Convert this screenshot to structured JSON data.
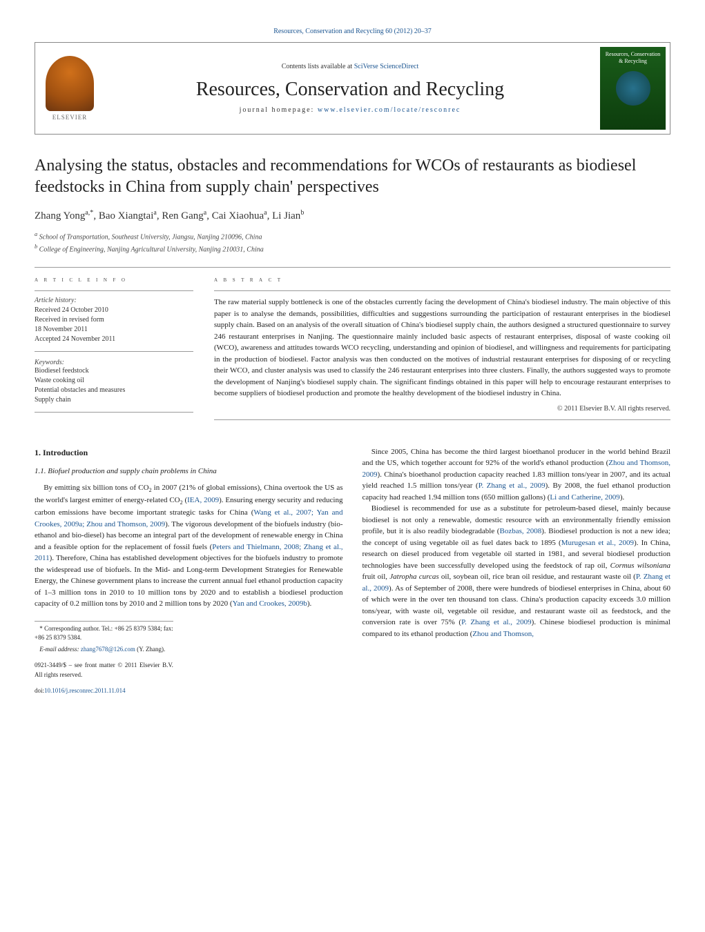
{
  "header": {
    "journal_ref": "Resources, Conservation and Recycling 60 (2012) 20–37",
    "contents_prefix": "Contents lists available at ",
    "contents_link": "SciVerse ScienceDirect",
    "journal_name": "Resources, Conservation and Recycling",
    "homepage_prefix": "journal homepage: ",
    "homepage_link": "www.elsevier.com/locate/resconrec",
    "elsevier_label": "ELSEVIER",
    "cover_text": "Resources, Conservation & Recycling"
  },
  "title": "Analysing the status, obstacles and recommendations for WCOs of restaurants as biodiesel feedstocks in China from supply chain' perspectives",
  "authors_html": "Zhang Yong<sup>a,*</sup>, Bao Xiangtai<sup>a</sup>, Ren Gang<sup>a</sup>, Cai Xiaohua<sup>a</sup>, Li Jian<sup>b</sup>",
  "affiliations": {
    "a": "School of Transportation, Southeast University, Jiangsu, Nanjing 210096, China",
    "b": "College of Engineering, Nanjing Agricultural University, Nanjing 210031, China"
  },
  "info": {
    "section_label": "a r t i c l e   i n f o",
    "history_label": "Article history:",
    "history": [
      "Received 24 October 2010",
      "Received in revised form",
      "18 November 2011",
      "Accepted 24 November 2011"
    ],
    "keywords_label": "Keywords:",
    "keywords": [
      "Biodiesel feedstock",
      "Waste cooking oil",
      "Potential obstacles and measures",
      "Supply chain"
    ]
  },
  "abstract": {
    "section_label": "a b s t r a c t",
    "text": "The raw material supply bottleneck is one of the obstacles currently facing the development of China's biodiesel industry. The main objective of this paper is to analyse the demands, possibilities, difficulties and suggestions surrounding the participation of restaurant enterprises in the biodiesel supply chain. Based on an analysis of the overall situation of China's biodiesel supply chain, the authors designed a structured questionnaire to survey 246 restaurant enterprises in Nanjing. The questionnaire mainly included basic aspects of restaurant enterprises, disposal of waste cooking oil (WCO), awareness and attitudes towards WCO recycling, understanding and opinion of biodiesel, and willingness and requirements for participating in the production of biodiesel. Factor analysis was then conducted on the motives of industrial restaurant enterprises for disposing of or recycling their WCO, and cluster analysis was used to classify the 246 restaurant enterprises into three clusters. Finally, the authors suggested ways to promote the development of Nanjing's biodiesel supply chain. The significant findings obtained in this paper will help to encourage restaurant enterprises to become suppliers of biodiesel production and promote the healthy development of the biodiesel industry in China.",
    "copyright": "© 2011 Elsevier B.V. All rights reserved."
  },
  "body": {
    "s1_heading": "1.  Introduction",
    "s11_heading": "1.1.  Biofuel production and supply chain problems in China",
    "p1_a": "By emitting six billion tons of CO",
    "p1_b": " in 2007 (21% of global emissions), China overtook the US as the world's largest emitter of energy-related CO",
    "p1_c": " (",
    "p1_link1": "IEA, 2009",
    "p1_d": "). Ensuring energy security and reducing carbon emissions have become important strategic tasks for China (",
    "p1_link2": "Wang et al., 2007; Yan and Crookes, 2009a; Zhou and Thomson, 2009",
    "p1_e": "). The vigorous development of the biofuels industry (bio-ethanol and bio-diesel) has become an integral part of the development of renewable energy in China and a feasible option for the replacement of fossil fuels (",
    "p1_link3": "Peters and Thielmann, 2008; Zhang et al., 2011",
    "p1_f": "). Therefore, China has established development objectives for the biofuels industry to promote the widespread use of biofuels. In the Mid- and Long-term Development Strategies for Renewable Energy, the Chinese government plans to increase the current annual fuel ethanol production capacity of 1–3 million tons in 2010 to 10 million tons by 2020 and to establish a biodiesel production capacity of 0.2 million tons by 2010 and 2 million tons by 2020 (",
    "p1_link4": "Yan and Crookes, 2009b",
    "p1_g": ").",
    "p2_a": "Since 2005, China has become the third largest bioethanol producer in the world behind Brazil and the US, which together account for 92% of the world's ethanol production (",
    "p2_link1": "Zhou and Thomson, 2009",
    "p2_b": "). China's bioethanol production capacity reached 1.83 million tons/year in 2007, and its actual yield reached 1.5 million tons/year (",
    "p2_link2": "P. Zhang et al., 2009",
    "p2_c": "). By 2008, the fuel ethanol production capacity had reached 1.94 million tons (650 million gallons) (",
    "p2_link3": "Li and Catherine, 2009",
    "p2_d": ").",
    "p3_a": "Biodiesel is recommended for use as a substitute for petroleum-based diesel, mainly because biodiesel is not only a renewable, domestic resource with an environmentally friendly emission profile, but it is also readily biodegradable (",
    "p3_link1": "Bozbas, 2008",
    "p3_b": "). Biodiesel production is not a new idea; the concept of using vegetable oil as fuel dates back to 1895 (",
    "p3_link2": "Murugesan et al., 2009",
    "p3_c": "). In China, research on diesel produced from vegetable oil started in 1981, and several biodiesel production technologies have been successfully developed using the feedstock of rap oil, ",
    "p3_em1": "Cormus wilsoniana",
    "p3_d": " fruit oil, ",
    "p3_em2": "Jatropha curcas",
    "p3_e": " oil, soybean oil, rice bran oil residue, and restaurant waste oil (",
    "p3_link3": "P. Zhang et al., 2009",
    "p3_f": "). As of September of 2008, there were hundreds of biodiesel enterprises in China, about 60 of which were in the over ten thousand ton class. China's production capacity exceeds 3.0 million tons/year, with waste oil, vegetable oil residue, and restaurant waste oil as feedstock, and the conversion rate is over 75% (",
    "p3_link4": "P. Zhang et al., 2009",
    "p3_g": "). Chinese biodiesel production is minimal compared to its ethanol production (",
    "p3_link5": "Zhou and Thomson,",
    "p3_h": ""
  },
  "footnotes": {
    "corr": "* Corresponding author. Tel.: +86 25 8379 5384; fax: +86 25 8379 5384.",
    "email_label": "E-mail address: ",
    "email": "zhang7678@126.com",
    "email_suffix": " (Y. Zhang).",
    "issn": "0921-3449/$ – see front matter © 2011 Elsevier B.V. All rights reserved.",
    "doi_label": "doi:",
    "doi": "10.1016/j.resconrec.2011.11.014"
  },
  "colors": {
    "link": "#1a5490",
    "text": "#1a1a1a",
    "border": "#999999",
    "elsevier_orange": "#d0701a",
    "cover_green": "#1a5d1a"
  }
}
